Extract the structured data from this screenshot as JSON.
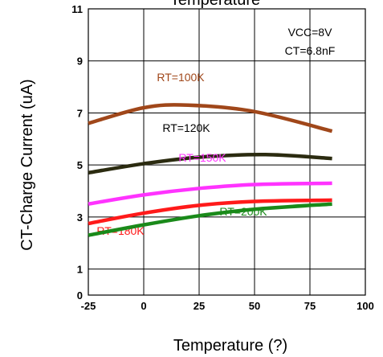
{
  "chart_data": {
    "type": "line",
    "title": "Temperature",
    "xlabel": "Temperature (?)",
    "ylabel": "CT-Charge Current (uA)",
    "xlim": [
      -25,
      100
    ],
    "ylim": [
      0,
      11
    ],
    "x_ticks": [
      "-25",
      "0",
      "25",
      "50",
      "75",
      "100"
    ],
    "y_ticks": [
      "0",
      "1",
      "3",
      "5",
      "7",
      "9",
      "11"
    ],
    "annotations": [
      "VCC=8V",
      "CT=6.8nF"
    ],
    "grid": true,
    "series": [
      {
        "name": "RT=100K",
        "color": "#a0471a",
        "x": [
          -25,
          0,
          20,
          50,
          85
        ],
        "y": [
          6.6,
          7.2,
          7.3,
          7.05,
          6.3
        ]
      },
      {
        "name": "RT=120K",
        "color": "#2b2b10",
        "x": [
          -25,
          0,
          25,
          55,
          85
        ],
        "y": [
          4.7,
          5.05,
          5.3,
          5.4,
          5.25
        ]
      },
      {
        "name": "RT=150K",
        "color": "#ff33ff",
        "x": [
          -25,
          0,
          25,
          50,
          85
        ],
        "y": [
          3.5,
          3.85,
          4.1,
          4.25,
          4.3
        ]
      },
      {
        "name": "RT=180K",
        "color": "#ff1a1a",
        "x": [
          -25,
          0,
          25,
          50,
          85
        ],
        "y": [
          2.75,
          3.15,
          3.45,
          3.6,
          3.65
        ]
      },
      {
        "name": "RT=200K",
        "color": "#1a8a1a",
        "x": [
          -25,
          0,
          25,
          50,
          85
        ],
        "y": [
          2.3,
          2.7,
          3.05,
          3.3,
          3.5
        ]
      }
    ]
  }
}
